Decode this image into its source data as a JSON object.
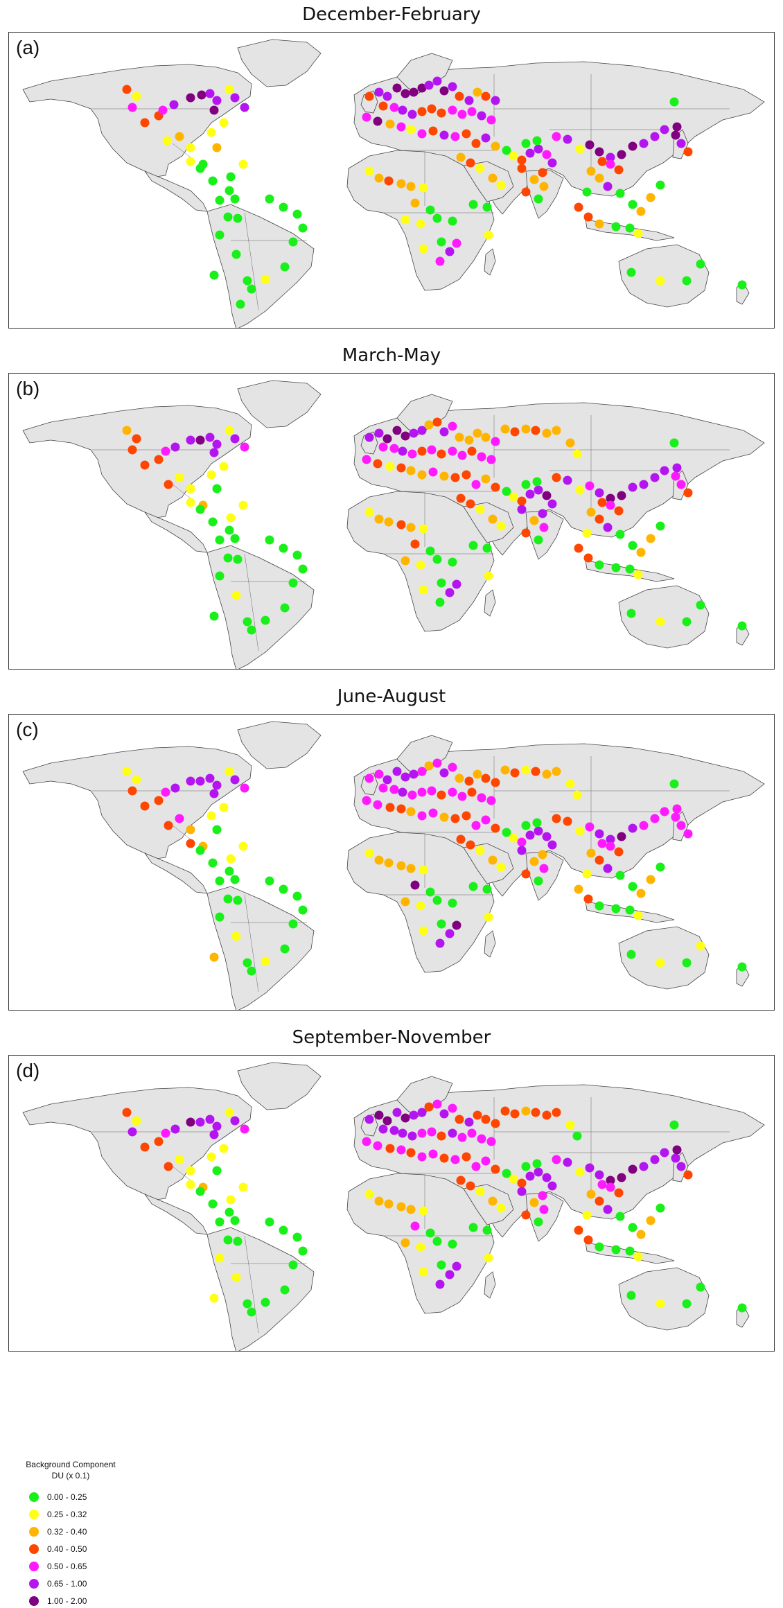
{
  "colors": {
    "land": "#e4e4e4",
    "border": "#444444",
    "c1": "#19f019",
    "c2": "#ffff14",
    "c3": "#ffb400",
    "c4": "#ff4600",
    "c5": "#ff19ff",
    "c6": "#b414f0",
    "c7": "#800080"
  },
  "panels": [
    {
      "title": "December-February",
      "label": "(a)"
    },
    {
      "title": "March-May",
      "label": "(b)"
    },
    {
      "title": "June-August",
      "label": "(c)"
    },
    {
      "title": "September-November",
      "label": "(d)"
    }
  ],
  "legend": {
    "title_line1": "Background Component",
    "title_line2": "DU (x 0.1)",
    "items": [
      {
        "label": "0.00 - 0.25",
        "color": "#19f019"
      },
      {
        "label": "0.25 - 0.32",
        "color": "#ffff14"
      },
      {
        "label": "0.32 - 0.40",
        "color": "#ffb400"
      },
      {
        "label": "0.40 - 0.50",
        "color": "#ff4600"
      },
      {
        "label": "0.50 - 0.65",
        "color": "#ff19ff"
      },
      {
        "label": "0.65 - 1.00",
        "color": "#b414f0"
      },
      {
        "label": "1.00 - 2.00",
        "color": "#800080"
      }
    ]
  }
}
